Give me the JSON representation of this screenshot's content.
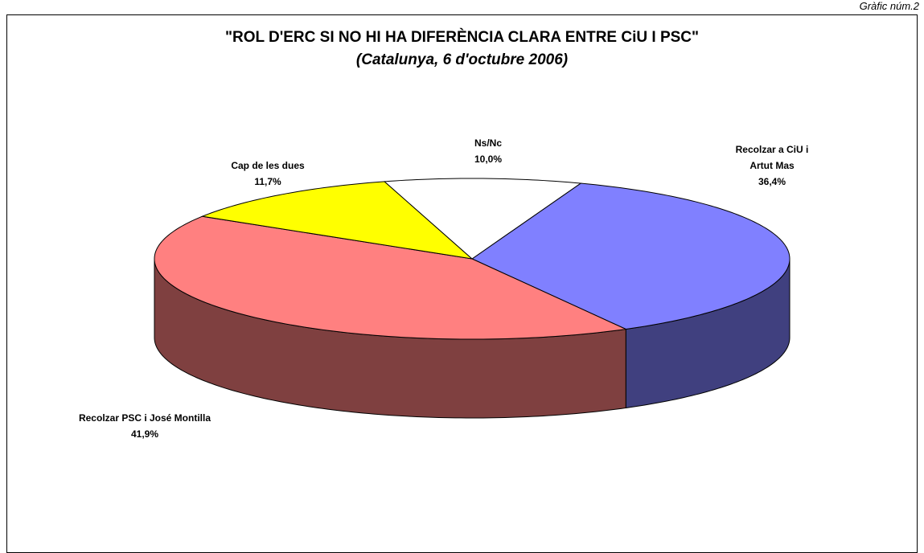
{
  "page_label": "Gràfic núm.2",
  "chart_data": {
    "type": "pie3d",
    "title": "\"ROL D'ERC SI NO HI HA DIFERÈNCIA CLARA ENTRE CiU I PSC\"",
    "subtitle": "(Catalunya, 6 d'octubre 2006)",
    "categories": [
      "Recolzar a CiU i Artut Mas",
      "Recolzar PSC i José Montilla",
      "Cap de les dues",
      "Ns/Nc"
    ],
    "values": [
      36.4,
      41.9,
      11.7,
      10.0
    ],
    "value_labels": [
      "36,4%",
      "41,9%",
      "11,7%",
      "10,0%"
    ],
    "colors": [
      "#8080ff",
      "#ff8080",
      "#ffff00",
      "#ffffff"
    ]
  }
}
